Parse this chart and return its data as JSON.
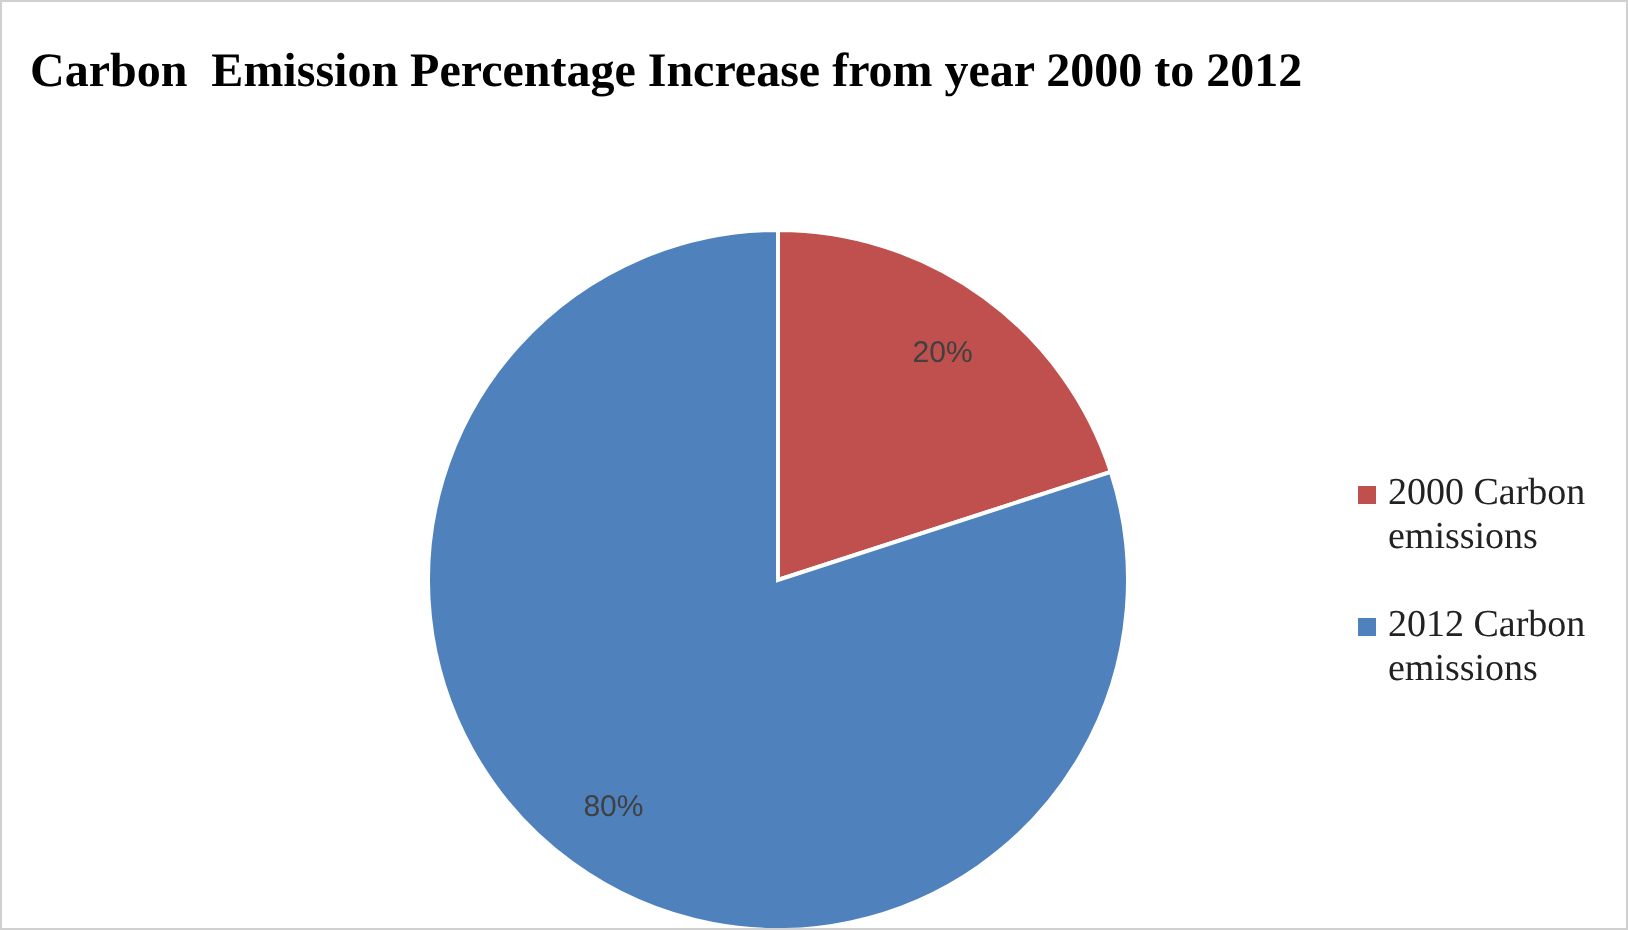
{
  "chart_data": {
    "type": "pie",
    "title": "Carbon  Emission Percentage Increase from year 2000 to 2012",
    "categories": [
      "2000 Carbon emissions",
      "2012 Carbon emissions"
    ],
    "values": [
      20,
      80
    ],
    "colors": [
      "#c0504d",
      "#4f81bd"
    ],
    "value_labels": [
      "20%",
      "80%"
    ],
    "legend": "right"
  }
}
